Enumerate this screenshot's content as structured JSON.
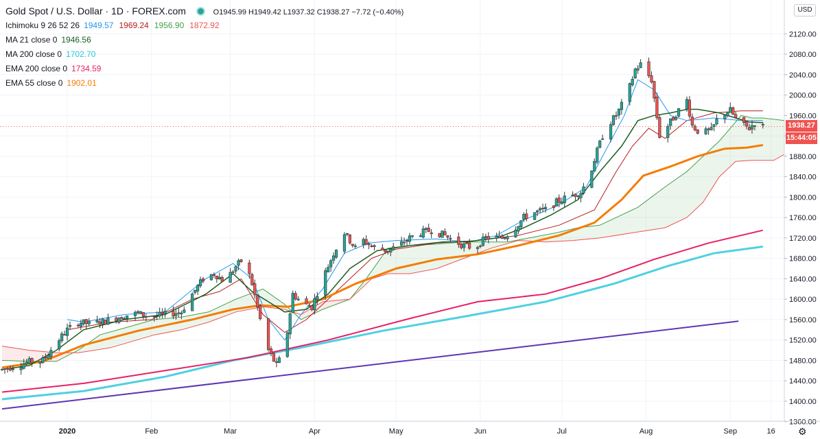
{
  "legend": {
    "title": "Gold Spot / U.S. Dollar · 1D · FOREX.com",
    "ohlc": "O1945.99 H1949.42 L1937.32 C1938.27 −7.72 (−0.40%)",
    "rows": [
      {
        "label": "Ichimoku 9 26 52 26",
        "values": [
          {
            "text": "1949.57",
            "color": "#2196f3"
          },
          {
            "text": "1969.24",
            "color": "#b71c1c"
          },
          {
            "text": "1956.90",
            "color": "#43a047"
          },
          {
            "text": "1872.92",
            "color": "#ef5350"
          }
        ]
      },
      {
        "label": "MA 21 close 0",
        "values": [
          {
            "text": "1946.56",
            "color": "#1b5e20"
          }
        ]
      },
      {
        "label": "MA 200 close 0",
        "values": [
          {
            "text": "1702.70",
            "color": "#26c6da"
          }
        ]
      },
      {
        "label": "EMA 200 close 0",
        "values": [
          {
            "text": "1734.59",
            "color": "#e91e63"
          }
        ]
      },
      {
        "label": "EMA 55 close 0",
        "values": [
          {
            "text": "1902.01",
            "color": "#f57c00"
          }
        ]
      }
    ]
  },
  "price_axis": {
    "currency": "USD",
    "last_price": "1938.27",
    "countdown": "15:44:05"
  },
  "colors": {
    "up": "#26a69a",
    "down": "#ef5350",
    "ma21": "#1b5e20",
    "ma200": "#4dd0e1",
    "ema200": "#e91e63",
    "ema55": "#f57c00",
    "trend": "#5e35b1",
    "tenkan": "#2196f3",
    "kijun": "#b71c1c",
    "cloud_green": "#43a047",
    "cloud_red": "#ef5350"
  },
  "chart_data": {
    "type": "candlestick",
    "ylim": [
      1340,
      2130
    ],
    "y_ticks": [
      1360,
      1400,
      1440,
      1480,
      1520,
      1560,
      1600,
      1640,
      1680,
      1720,
      1760,
      1800,
      1840,
      1880,
      1920,
      1960,
      2000,
      2040,
      2080,
      2120
    ],
    "x_ticks": [
      {
        "label": "2020",
        "bold": true,
        "day": 24
      },
      {
        "label": "Feb",
        "day": 55
      },
      {
        "label": "Mar",
        "day": 84
      },
      {
        "label": "Apr",
        "day": 115
      },
      {
        "label": "May",
        "day": 145
      },
      {
        "label": "Jun",
        "day": 176
      },
      {
        "label": "Jul",
        "day": 206
      },
      {
        "label": "Aug",
        "day": 237
      },
      {
        "label": "Sep",
        "day": 268
      },
      {
        "label": "16",
        "day": 283
      }
    ],
    "close_path": [
      [
        0,
        1462
      ],
      [
        5,
        1470
      ],
      [
        10,
        1477
      ],
      [
        15,
        1480
      ],
      [
        20,
        1515
      ],
      [
        24,
        1540
      ],
      [
        28,
        1555
      ],
      [
        32,
        1552
      ],
      [
        38,
        1557
      ],
      [
        45,
        1568
      ],
      [
        50,
        1572
      ],
      [
        55,
        1565
      ],
      [
        60,
        1570
      ],
      [
        66,
        1575
      ],
      [
        70,
        1610
      ],
      [
        74,
        1640
      ],
      [
        78,
        1650
      ],
      [
        82,
        1635
      ],
      [
        86,
        1664
      ],
      [
        89,
        1680
      ],
      [
        92,
        1630
      ],
      [
        95,
        1560
      ],
      [
        98,
        1500
      ],
      [
        101,
        1470
      ],
      [
        104,
        1500
      ],
      [
        107,
        1610
      ],
      [
        111,
        1590
      ],
      [
        114,
        1585
      ],
      [
        118,
        1640
      ],
      [
        122,
        1690
      ],
      [
        126,
        1730
      ],
      [
        130,
        1700
      ],
      [
        133,
        1715
      ],
      [
        137,
        1700
      ],
      [
        142,
        1695
      ],
      [
        146,
        1705
      ],
      [
        150,
        1720
      ],
      [
        154,
        1730
      ],
      [
        158,
        1735
      ],
      [
        163,
        1725
      ],
      [
        166,
        1715
      ],
      [
        170,
        1705
      ],
      [
        174,
        1700
      ],
      [
        178,
        1720
      ],
      [
        184,
        1720
      ],
      [
        188,
        1735
      ],
      [
        192,
        1760
      ],
      [
        196,
        1770
      ],
      [
        200,
        1775
      ],
      [
        204,
        1790
      ],
      [
        208,
        1800
      ],
      [
        213,
        1810
      ],
      [
        216,
        1840
      ],
      [
        219,
        1890
      ],
      [
        222,
        1935
      ],
      [
        226,
        1960
      ],
      [
        230,
        2000
      ],
      [
        233,
        2050
      ],
      [
        235,
        2060
      ],
      [
        237,
        2045
      ],
      [
        239,
        2030
      ],
      [
        242,
        1920
      ],
      [
        245,
        1940
      ],
      [
        249,
        1970
      ],
      [
        252,
        1990
      ],
      [
        254,
        1940
      ],
      [
        257,
        1925
      ],
      [
        261,
        1930
      ],
      [
        264,
        1960
      ],
      [
        268,
        1970
      ],
      [
        271,
        1945
      ],
      [
        275,
        1935
      ],
      [
        277,
        1946
      ],
      [
        280,
        1938
      ]
    ],
    "ma21_path": [
      [
        0,
        1462
      ],
      [
        10,
        1470
      ],
      [
        20,
        1500
      ],
      [
        30,
        1540
      ],
      [
        45,
        1560
      ],
      [
        60,
        1570
      ],
      [
        75,
        1610
      ],
      [
        85,
        1650
      ],
      [
        92,
        1615
      ],
      [
        98,
        1595
      ],
      [
        104,
        1575
      ],
      [
        112,
        1580
      ],
      [
        120,
        1610
      ],
      [
        128,
        1660
      ],
      [
        138,
        1695
      ],
      [
        150,
        1705
      ],
      [
        162,
        1712
      ],
      [
        172,
        1713
      ],
      [
        182,
        1720
      ],
      [
        192,
        1740
      ],
      [
        202,
        1765
      ],
      [
        212,
        1795
      ],
      [
        220,
        1850
      ],
      [
        228,
        1900
      ],
      [
        234,
        1950
      ],
      [
        240,
        1960
      ],
      [
        246,
        1965
      ],
      [
        252,
        1972
      ],
      [
        256,
        1972
      ],
      [
        264,
        1965
      ],
      [
        270,
        1955
      ],
      [
        275,
        1947
      ],
      [
        280,
        1946
      ]
    ],
    "ema55_path": [
      [
        0,
        1466
      ],
      [
        15,
        1478
      ],
      [
        30,
        1510
      ],
      [
        50,
        1538
      ],
      [
        70,
        1560
      ],
      [
        85,
        1580
      ],
      [
        95,
        1588
      ],
      [
        105,
        1585
      ],
      [
        118,
        1600
      ],
      [
        130,
        1630
      ],
      [
        145,
        1660
      ],
      [
        160,
        1678
      ],
      [
        175,
        1688
      ],
      [
        190,
        1705
      ],
      [
        205,
        1725
      ],
      [
        218,
        1750
      ],
      [
        228,
        1795
      ],
      [
        236,
        1842
      ],
      [
        246,
        1860
      ],
      [
        256,
        1880
      ],
      [
        266,
        1895
      ],
      [
        274,
        1897
      ],
      [
        280,
        1902
      ]
    ],
    "ema200_path": [
      [
        0,
        1418
      ],
      [
        30,
        1435
      ],
      [
        60,
        1460
      ],
      [
        90,
        1485
      ],
      [
        120,
        1520
      ],
      [
        150,
        1562
      ],
      [
        175,
        1595
      ],
      [
        200,
        1610
      ],
      [
        220,
        1640
      ],
      [
        240,
        1678
      ],
      [
        260,
        1710
      ],
      [
        280,
        1735
      ]
    ],
    "ma200_path": [
      [
        0,
        1404
      ],
      [
        30,
        1420
      ],
      [
        60,
        1448
      ],
      [
        85,
        1480
      ],
      [
        110,
        1505
      ],
      [
        140,
        1538
      ],
      [
        170,
        1566
      ],
      [
        200,
        1595
      ],
      [
        225,
        1630
      ],
      [
        245,
        1665
      ],
      [
        262,
        1690
      ],
      [
        280,
        1703
      ]
    ],
    "trendline": [
      [
        0,
        1385
      ],
      [
        271,
        1557
      ]
    ],
    "tenkan_path": [
      [
        24,
        1560
      ],
      [
        30,
        1555
      ],
      [
        45,
        1570
      ],
      [
        60,
        1575
      ],
      [
        75,
        1640
      ],
      [
        85,
        1670
      ],
      [
        92,
        1640
      ],
      [
        98,
        1560
      ],
      [
        104,
        1520
      ],
      [
        110,
        1570
      ],
      [
        118,
        1620
      ],
      [
        126,
        1690
      ],
      [
        135,
        1710
      ],
      [
        145,
        1715
      ],
      [
        160,
        1718
      ],
      [
        172,
        1712
      ],
      [
        182,
        1725
      ],
      [
        192,
        1755
      ],
      [
        205,
        1785
      ],
      [
        215,
        1820
      ],
      [
        222,
        1890
      ],
      [
        229,
        1960
      ],
      [
        234,
        2030
      ],
      [
        240,
        2010
      ],
      [
        246,
        1960
      ],
      [
        252,
        1950
      ],
      [
        262,
        1955
      ],
      [
        272,
        1950
      ],
      [
        280,
        1950
      ]
    ],
    "kijun_path": [
      [
        24,
        1540
      ],
      [
        40,
        1555
      ],
      [
        55,
        1560
      ],
      [
        70,
        1600
      ],
      [
        80,
        1615
      ],
      [
        88,
        1640
      ],
      [
        96,
        1570
      ],
      [
        104,
        1535
      ],
      [
        112,
        1560
      ],
      [
        120,
        1600
      ],
      [
        128,
        1640
      ],
      [
        136,
        1680
      ],
      [
        145,
        1698
      ],
      [
        160,
        1710
      ],
      [
        175,
        1715
      ],
      [
        190,
        1725
      ],
      [
        205,
        1745
      ],
      [
        218,
        1775
      ],
      [
        226,
        1850
      ],
      [
        232,
        1900
      ],
      [
        238,
        1935
      ],
      [
        244,
        1915
      ],
      [
        252,
        1950
      ],
      [
        262,
        1965
      ],
      [
        272,
        1969
      ],
      [
        280,
        1969
      ]
    ],
    "span_a_path": [
      [
        0,
        1480
      ],
      [
        10,
        1478
      ],
      [
        20,
        1478
      ],
      [
        28,
        1500
      ],
      [
        36,
        1530
      ],
      [
        46,
        1545
      ],
      [
        56,
        1560
      ],
      [
        66,
        1565
      ],
      [
        76,
        1575
      ],
      [
        86,
        1600
      ],
      [
        96,
        1620
      ],
      [
        104,
        1590
      ],
      [
        110,
        1560
      ],
      [
        118,
        1580
      ],
      [
        128,
        1600
      ],
      [
        134,
        1640
      ],
      [
        142,
        1700
      ],
      [
        150,
        1705
      ],
      [
        160,
        1708
      ],
      [
        170,
        1712
      ],
      [
        178,
        1712
      ],
      [
        186,
        1712
      ],
      [
        194,
        1720
      ],
      [
        204,
        1730
      ],
      [
        212,
        1740
      ],
      [
        220,
        1745
      ],
      [
        226,
        1760
      ],
      [
        234,
        1780
      ],
      [
        244,
        1820
      ],
      [
        252,
        1850
      ],
      [
        258,
        1880
      ],
      [
        264,
        1910
      ],
      [
        268,
        1935
      ],
      [
        272,
        1960
      ],
      [
        276,
        1955
      ],
      [
        280,
        1955
      ],
      [
        288,
        1950
      ]
    ],
    "span_b_path": [
      [
        0,
        1508
      ],
      [
        10,
        1500
      ],
      [
        20,
        1495
      ],
      [
        28,
        1495
      ],
      [
        40,
        1505
      ],
      [
        56,
        1530
      ],
      [
        66,
        1540
      ],
      [
        76,
        1555
      ],
      [
        86,
        1575
      ],
      [
        96,
        1585
      ],
      [
        104,
        1580
      ],
      [
        110,
        1570
      ],
      [
        118,
        1595
      ],
      [
        128,
        1600
      ],
      [
        136,
        1640
      ],
      [
        142,
        1650
      ],
      [
        150,
        1650
      ],
      [
        160,
        1660
      ],
      [
        170,
        1680
      ],
      [
        180,
        1700
      ],
      [
        190,
        1715
      ],
      [
        200,
        1712
      ],
      [
        210,
        1715
      ],
      [
        220,
        1720
      ],
      [
        232,
        1730
      ],
      [
        244,
        1740
      ],
      [
        252,
        1760
      ],
      [
        258,
        1790
      ],
      [
        264,
        1840
      ],
      [
        270,
        1870
      ],
      [
        276,
        1872
      ],
      [
        284,
        1872
      ],
      [
        290,
        1890
      ]
    ]
  }
}
